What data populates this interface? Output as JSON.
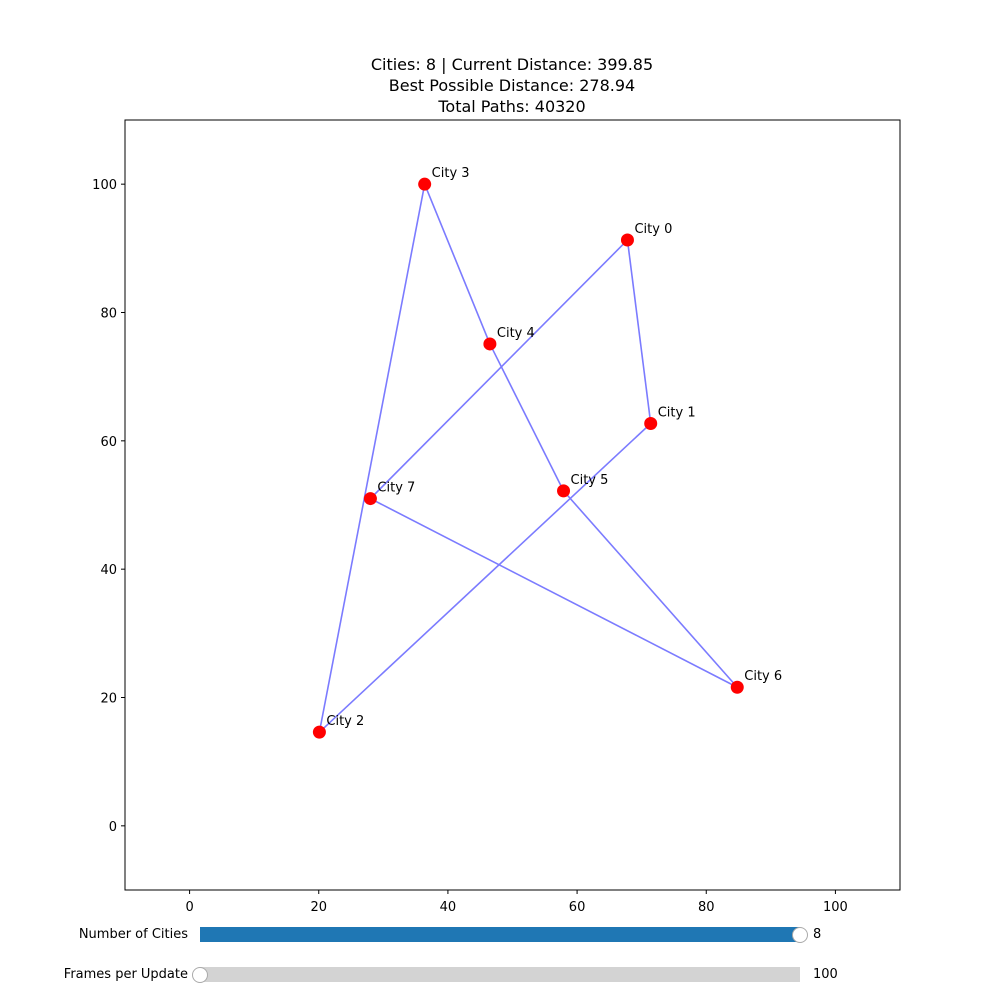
{
  "chart_data": {
    "type": "scatter",
    "title_lines": [
      "Cities: 8 | Current Distance: 399.85",
      "Best Possible Distance: 278.94",
      "Total Paths: 40320"
    ],
    "xlabel": "",
    "ylabel": "",
    "xlim": [
      -10,
      110
    ],
    "ylim": [
      -10,
      110
    ],
    "x_ticks": [
      0,
      20,
      40,
      60,
      80,
      100
    ],
    "y_ticks": [
      0,
      20,
      40,
      60,
      80,
      100
    ],
    "grid": false,
    "point_color": "#ff0000",
    "path_color": "#7b7bff",
    "cities": [
      {
        "name": "City 0",
        "x": 67.8,
        "y": 91.3
      },
      {
        "name": "City 1",
        "x": 71.4,
        "y": 62.7
      },
      {
        "name": "City 2",
        "x": 20.1,
        "y": 14.6
      },
      {
        "name": "City 3",
        "x": 36.4,
        "y": 100.0
      },
      {
        "name": "City 4",
        "x": 46.5,
        "y": 75.1
      },
      {
        "name": "City 5",
        "x": 57.9,
        "y": 52.2
      },
      {
        "name": "City 6",
        "x": 84.8,
        "y": 21.6
      },
      {
        "name": "City 7",
        "x": 28.0,
        "y": 51.0
      }
    ],
    "path_order": [
      0,
      1,
      2,
      3,
      4,
      5,
      6,
      7,
      0
    ]
  },
  "sliders": [
    {
      "label": "Number of Cities",
      "value_text": "8",
      "fraction": 1.0,
      "fill_color": "#1f77b4"
    },
    {
      "label": "Frames per Update",
      "value_text": "100",
      "fraction": 0.0,
      "fill_color": "#1f77b4"
    }
  ]
}
